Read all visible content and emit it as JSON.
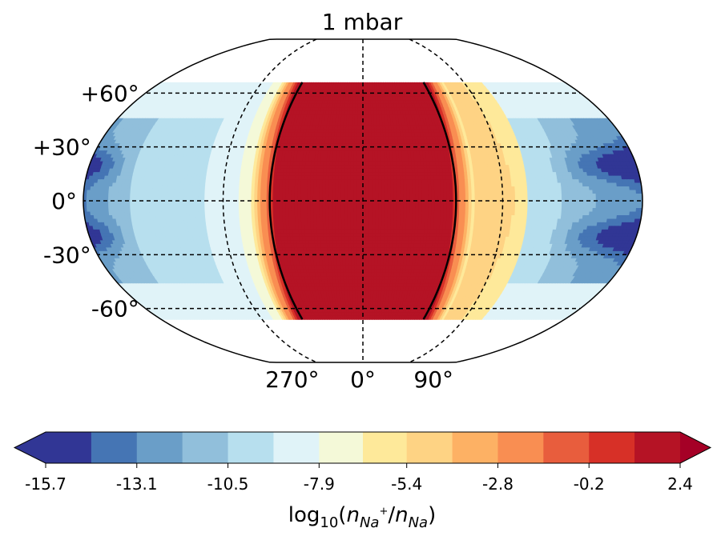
{
  "chart_data": {
    "type": "heatmap",
    "projection": "robinson-like (elliptical), central longitude 0",
    "title": "1 mbar",
    "lat_ticks": [
      {
        "value": 60,
        "label": "+60°"
      },
      {
        "value": 30,
        "label": "+30°"
      },
      {
        "value": 0,
        "label": "0°"
      },
      {
        "value": -30,
        "label": "-30°"
      },
      {
        "value": -60,
        "label": "-60°"
      }
    ],
    "lon_ticks": [
      {
        "value": 270,
        "label": "270°"
      },
      {
        "value": 0,
        "label": "0°"
      },
      {
        "value": 90,
        "label": "90°"
      }
    ],
    "data_lat_range": [
      -66,
      66
    ],
    "grid": true,
    "meridians_dashed": [
      -90,
      0,
      90
    ],
    "colorbar": {
      "orientation": "horizontal",
      "extend": "both",
      "boundaries": [
        -15.7,
        -14.4,
        -13.1,
        -11.8,
        -10.5,
        -9.2,
        -7.9,
        -6.65,
        -5.4,
        -4.1,
        -2.8,
        -1.5,
        -0.2,
        1.1,
        2.4
      ],
      "tick_values": [
        -15.7,
        -13.1,
        -10.5,
        -7.9,
        -5.4,
        -2.8,
        -0.2,
        2.4
      ],
      "tick_labels": [
        "-15.7",
        "-13.1",
        "-10.5",
        "-7.9",
        "-5.4",
        "-2.8",
        "-0.2",
        "2.4"
      ],
      "colors": [
        "#313695",
        "#4575b4",
        "#6a9ec8",
        "#91bfdb",
        "#b7dfee",
        "#e0f3f8",
        "#f4f9d8",
        "#fee99a",
        "#fed384",
        "#fdb164",
        "#f98e52",
        "#e85d3d",
        "#d73027",
        "#b51325"
      ],
      "under_color": "#313695",
      "over_color": "#a50026",
      "label_main": "log",
      "label_sub": "10",
      "label_paren_open": "(",
      "label_numer": "n",
      "label_numer_sub": "Na",
      "label_numer_sup": "+",
      "label_slash": "/",
      "label_denom": "n",
      "label_denom_sub": "Na",
      "label_paren_close": ")"
    },
    "contour_line": {
      "level": 0,
      "color": "#000000",
      "description": "bold black boundary of dayside region"
    },
    "regions": [
      {
        "name": "dayside core",
        "lon_range": [
          -57,
          57
        ],
        "value_band": "1.1 to 2.4"
      },
      {
        "name": "western terminator band",
        "lon_range": [
          -72,
          -57
        ],
        "value_band": "-7.9 to 1.1"
      },
      {
        "name": "eastern terminator band",
        "lon_range": [
          57,
          105
        ],
        "value_band": "-7.9 to 1.1"
      },
      {
        "name": "nightside",
        "lon_range": [
          105,
          255
        ],
        "value_band": "-15.7 to -7.9"
      }
    ]
  }
}
